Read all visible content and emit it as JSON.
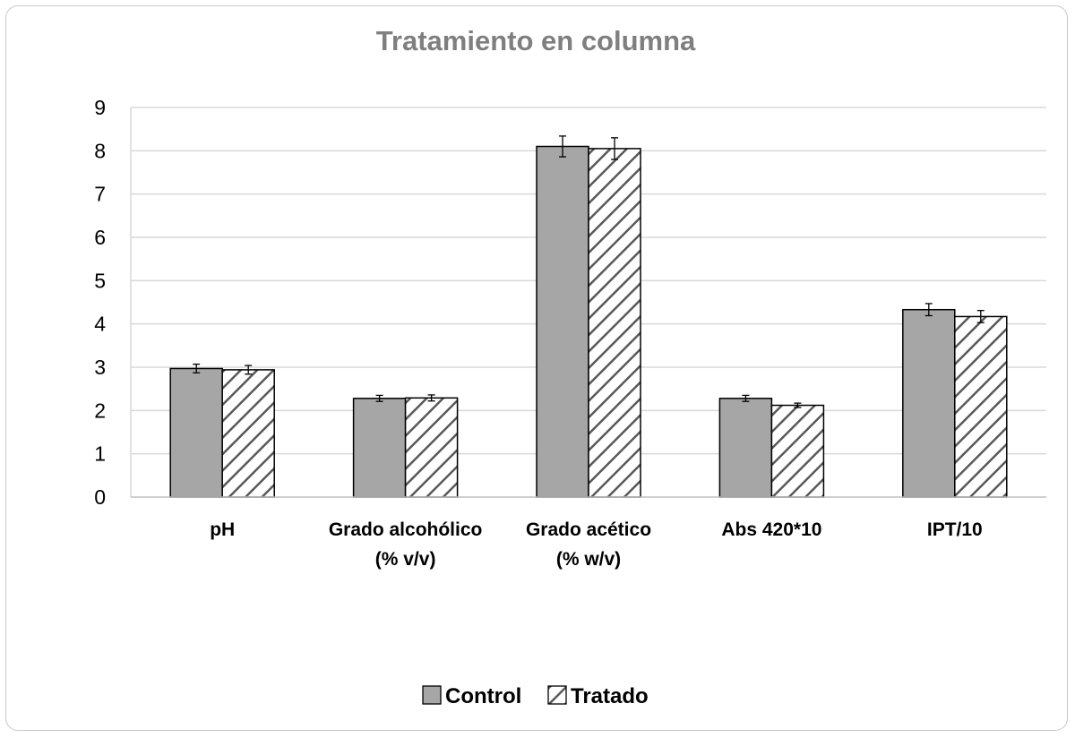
{
  "chart_data": {
    "type": "bar",
    "title": "Tratamiento en columna",
    "categories": [
      [
        "pH"
      ],
      [
        "Grado alcohólico",
        "(% v/v)"
      ],
      [
        "Grado acético",
        "(% w/v)"
      ],
      [
        "Abs 420*10"
      ],
      [
        "IPT/10"
      ]
    ],
    "series": [
      {
        "name": "Control",
        "values": [
          2.97,
          2.28,
          8.1,
          2.28,
          4.33
        ],
        "errors": [
          0.1,
          0.07,
          0.24,
          0.07,
          0.14
        ],
        "fill": "#a6a6a6",
        "pattern": "solid"
      },
      {
        "name": "Tratado",
        "values": [
          2.94,
          2.29,
          8.05,
          2.12,
          4.17
        ],
        "errors": [
          0.1,
          0.07,
          0.25,
          0.05,
          0.14
        ],
        "fill": "#ffffff",
        "pattern": "hatch"
      }
    ],
    "ylim": [
      0,
      9
    ],
    "yticks": [
      0,
      1,
      2,
      3,
      4,
      5,
      6,
      7,
      8,
      9
    ],
    "grid": true,
    "legend": "bottom",
    "colors": {
      "title": "#7f7f7f",
      "grid": "#d9d9d9",
      "control": "#a6a6a6",
      "hatch": "#595959",
      "border": "#c8c8c8"
    }
  }
}
